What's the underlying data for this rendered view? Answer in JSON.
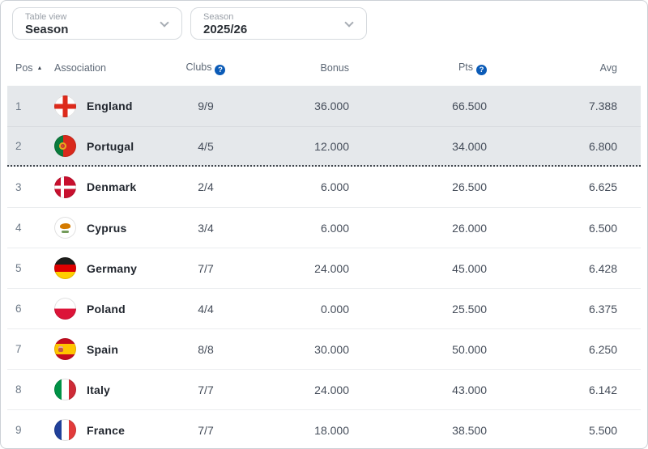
{
  "filters": {
    "table_view": {
      "label": "Table view",
      "value": "Season"
    },
    "season": {
      "label": "Season",
      "value": "2025/26"
    }
  },
  "icons": {
    "help": "?",
    "sort_asc": "▲"
  },
  "table": {
    "columns": {
      "pos": "Pos",
      "association": "Association",
      "clubs": "Clubs",
      "bonus": "Bonus",
      "pts": "Pts",
      "avg": "Avg"
    },
    "rows": [
      {
        "pos": "1",
        "association": "England",
        "flag": "england",
        "clubs": "9/9",
        "bonus": "36.000",
        "pts": "66.500",
        "avg": "7.388",
        "shaded": true
      },
      {
        "pos": "2",
        "association": "Portugal",
        "flag": "portugal",
        "clubs": "4/5",
        "bonus": "12.000",
        "pts": "34.000",
        "avg": "6.800",
        "shaded": true,
        "divider_after": true
      },
      {
        "pos": "3",
        "association": "Denmark",
        "flag": "denmark",
        "clubs": "2/4",
        "bonus": "6.000",
        "pts": "26.500",
        "avg": "6.625"
      },
      {
        "pos": "4",
        "association": "Cyprus",
        "flag": "cyprus",
        "clubs": "3/4",
        "bonus": "6.000",
        "pts": "26.000",
        "avg": "6.500"
      },
      {
        "pos": "5",
        "association": "Germany",
        "flag": "germany",
        "clubs": "7/7",
        "bonus": "24.000",
        "pts": "45.000",
        "avg": "6.428"
      },
      {
        "pos": "6",
        "association": "Poland",
        "flag": "poland",
        "clubs": "4/4",
        "bonus": "0.000",
        "pts": "25.500",
        "avg": "6.375"
      },
      {
        "pos": "7",
        "association": "Spain",
        "flag": "spain",
        "clubs": "8/8",
        "bonus": "30.000",
        "pts": "50.000",
        "avg": "6.250"
      },
      {
        "pos": "8",
        "association": "Italy",
        "flag": "italy",
        "clubs": "7/7",
        "bonus": "24.000",
        "pts": "43.000",
        "avg": "6.142"
      },
      {
        "pos": "9",
        "association": "France",
        "flag": "france",
        "clubs": "7/7",
        "bonus": "18.000",
        "pts": "38.500",
        "avg": "5.500"
      }
    ]
  },
  "colors": {
    "accent_blue": "#0b5bb7",
    "shaded_row": "#e5e8eb",
    "cutoff_dotted": "#3f454c"
  }
}
